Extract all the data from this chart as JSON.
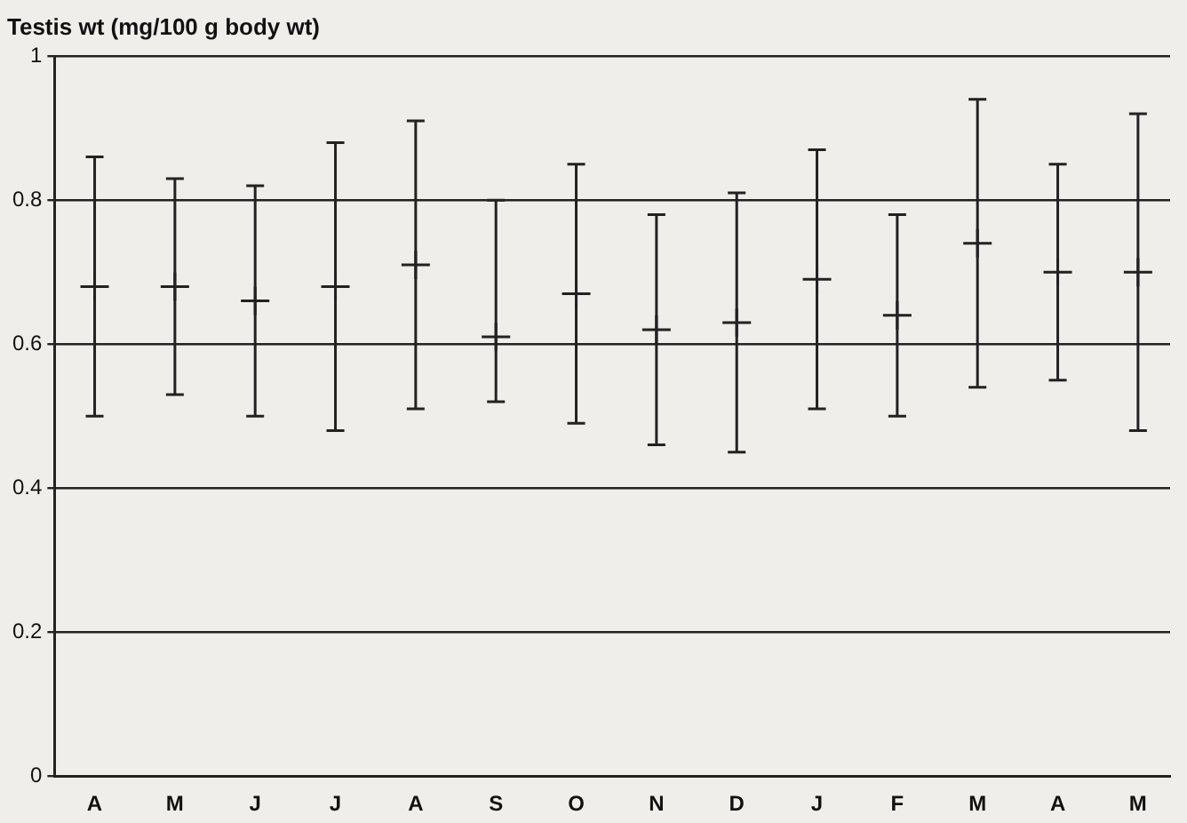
{
  "chart_data": {
    "type": "scatter",
    "ylabel": "Testis wt (mg/100 g body wt)",
    "categories": [
      "A",
      "M",
      "J",
      "J",
      "A",
      "S",
      "O",
      "N",
      "D",
      "J",
      "F",
      "M",
      "A",
      "M"
    ],
    "values": [
      0.68,
      0.68,
      0.66,
      0.68,
      0.71,
      0.61,
      0.67,
      0.62,
      0.63,
      0.69,
      0.64,
      0.74,
      0.7,
      0.7
    ],
    "errors": [
      [
        0.5,
        0.86
      ],
      [
        0.53,
        0.83
      ],
      [
        0.5,
        0.82
      ],
      [
        0.48,
        0.88
      ],
      [
        0.51,
        0.91
      ],
      [
        0.52,
        0.8
      ],
      [
        0.49,
        0.85
      ],
      [
        0.46,
        0.78
      ],
      [
        0.45,
        0.81
      ],
      [
        0.51,
        0.87
      ],
      [
        0.5,
        0.78
      ],
      [
        0.54,
        0.94
      ],
      [
        0.55,
        0.85
      ],
      [
        0.48,
        0.92
      ]
    ],
    "color": "#222222",
    "marker": "cross",
    "ylim": [
      0,
      1
    ],
    "yticks": [
      0,
      0.2,
      0.4,
      0.6,
      0.8,
      1
    ],
    "grid": "y"
  }
}
